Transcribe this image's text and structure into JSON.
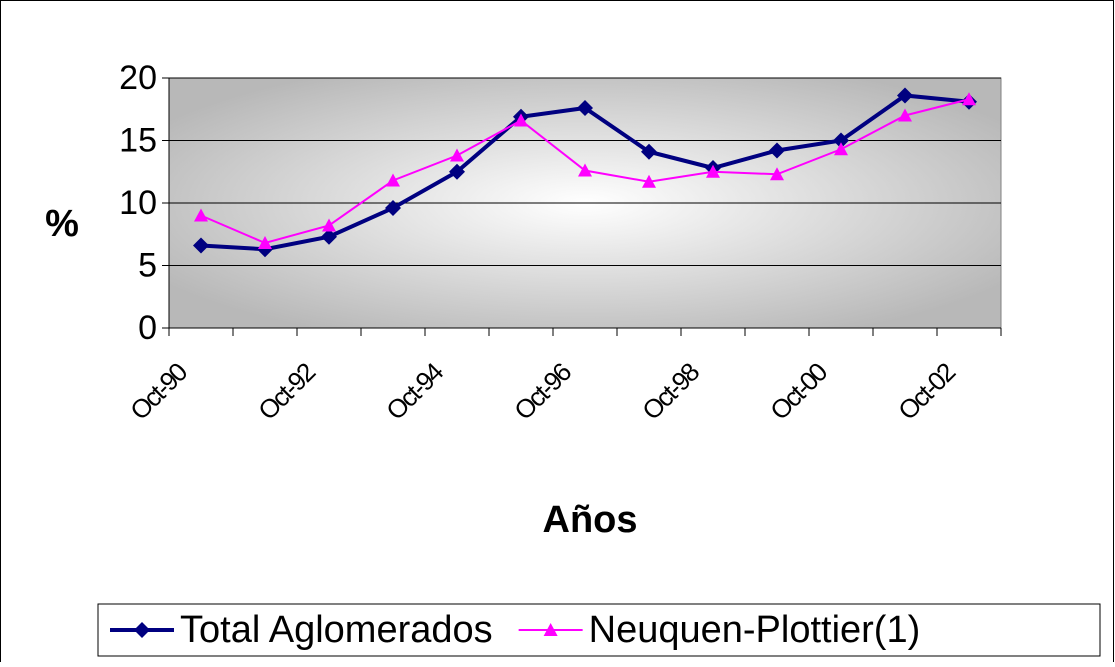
{
  "chart_data": {
    "type": "line",
    "categories": [
      "Oct-90",
      null,
      "Oct-92",
      null,
      "Oct-94",
      null,
      "Oct-96",
      null,
      "Oct-98",
      null,
      "Oct-00",
      null,
      "Oct-02"
    ],
    "x_label": "Años",
    "y_label": "%",
    "ylim": [
      0,
      20
    ],
    "yticks": [
      0,
      5,
      10,
      15,
      20
    ],
    "grid": true,
    "series": [
      {
        "name": "Total Aglomerados",
        "color": "#000080",
        "marker": "diamond",
        "values": [
          6.6,
          6.3,
          7.3,
          9.6,
          12.5,
          16.9,
          17.6,
          14.1,
          12.8,
          14.2,
          15.0,
          18.6,
          18.1
        ]
      },
      {
        "name": "Neuquen-Plottier(1)",
        "color": "#ff00ff",
        "marker": "triangle",
        "values": [
          9.0,
          6.8,
          8.2,
          11.8,
          13.8,
          16.6,
          12.6,
          11.7,
          12.5,
          12.3,
          14.3,
          17.0,
          18.3
        ]
      }
    ]
  }
}
